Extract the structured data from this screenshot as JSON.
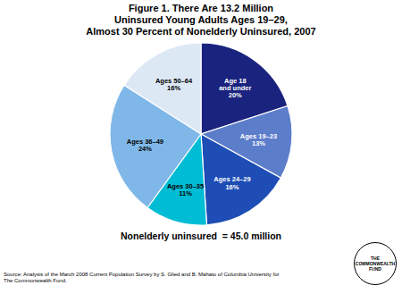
{
  "chart_data": {
    "type": "pie",
    "title": "Figure 1. There Are 13.2 Million\nUninsured Young Adults Ages 19–29,\nAlmost 30 Percent of Nonelderly Uninsured, 2007",
    "subtitle": "Nonelderly uninsured  = 45.0 million",
    "categories": [
      "Age 18\nand under\n20%",
      "Ages 19–23\n13%",
      "Ages 24–29\n16%",
      "Ages 30–35\n11%",
      "Ages 36–49\n24%",
      "Ages 50–64\n16%"
    ],
    "values": [
      20,
      13,
      16,
      11,
      24,
      16
    ],
    "colors": [
      "#1a237e",
      "#5c7dca",
      "#1e4db5",
      "#00bcd4",
      "#7fb8e8",
      "#dde8f5"
    ],
    "annotations": [
      "Source: Analysis of the March 2008 Current Population Survey by S. Glied and B. Mahato of Columbia University for\nThe Commonwealth Fund.",
      "THE\nCOMMONWEALTH\nFUND"
    ]
  }
}
